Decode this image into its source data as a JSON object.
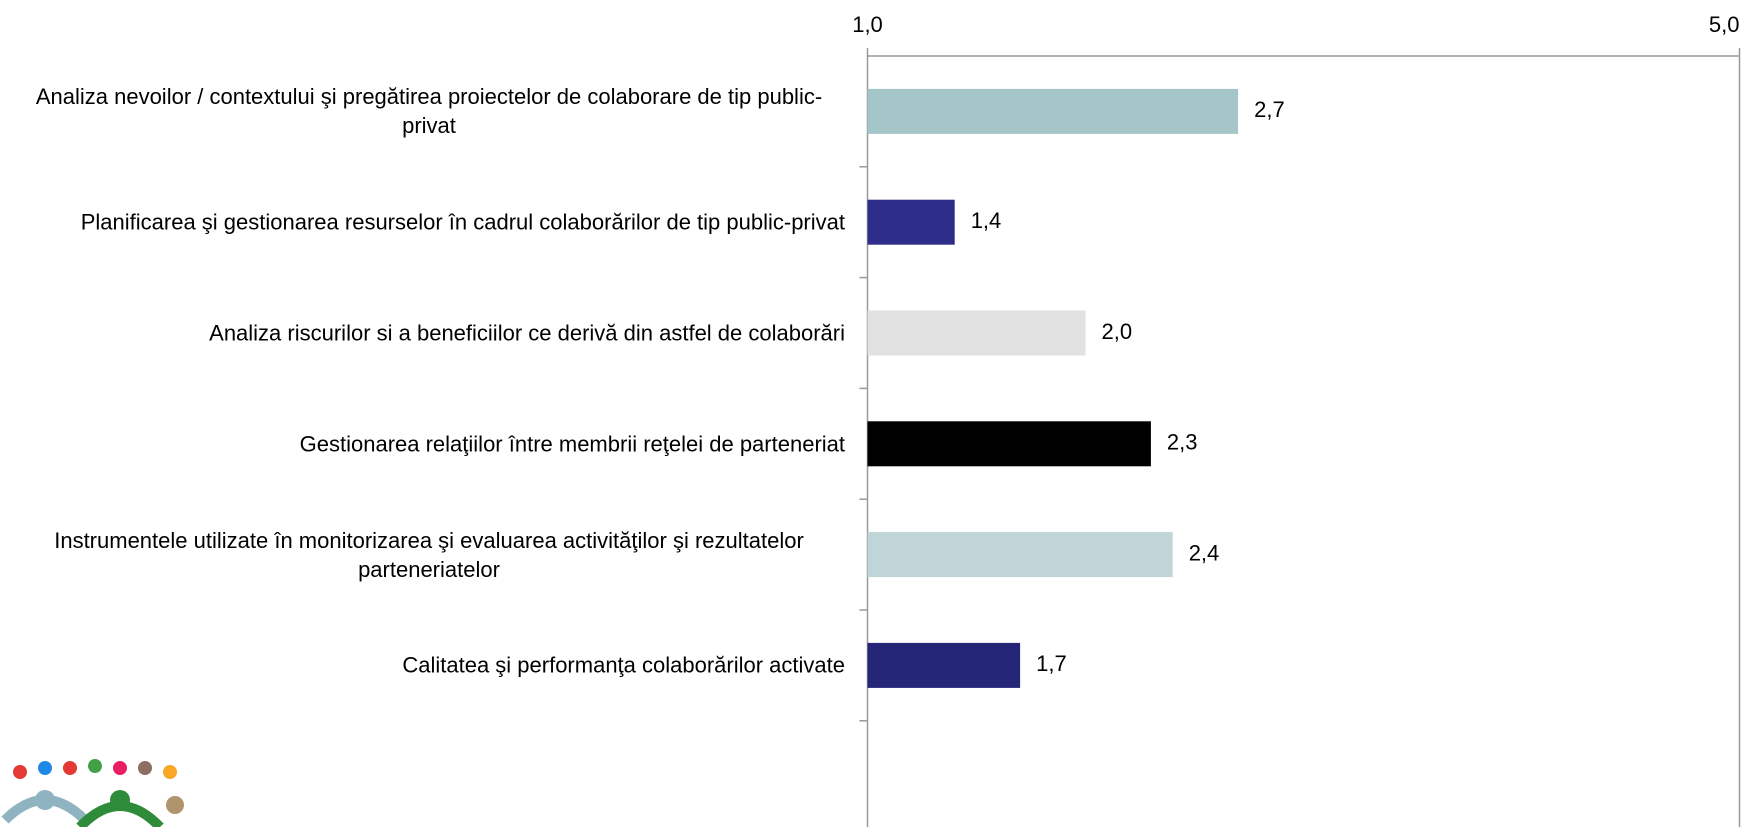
{
  "chart_data": {
    "type": "bar",
    "orientation": "horizontal",
    "categories": [
      "Analiza nevoilor / contextului şi pregătirea proiectelor de colaborare de tip public-privat",
      "Planificarea şi gestionarea resurselor în cadrul colaborărilor de tip public-privat",
      "Analiza riscurilor si a beneficiilor ce derivă din astfel de colaborări",
      "Gestionarea relaţiilor între membrii reţelei de parteneriat",
      "Instrumentele utilizate în monitorizarea şi evaluarea activităţilor şi rezultatelor parteneriatelor",
      "Calitatea şi performanţa colaborărilor activate"
    ],
    "values": [
      2.7,
      1.4,
      2.0,
      2.3,
      2.4,
      1.7
    ],
    "value_labels": [
      "2,7",
      "1,4",
      "2,0",
      "2,3",
      "2,4",
      "1,7"
    ],
    "colors": [
      "#a5c6c8",
      "#2e2e8a",
      "#e1e1e1",
      "#000000",
      "#c0d5d8",
      "#262678"
    ],
    "xlim": [
      1,
      5
    ],
    "xticks": [
      {
        "value": 1,
        "label": "1,0"
      },
      {
        "value": 5,
        "label": "5,0"
      }
    ]
  }
}
